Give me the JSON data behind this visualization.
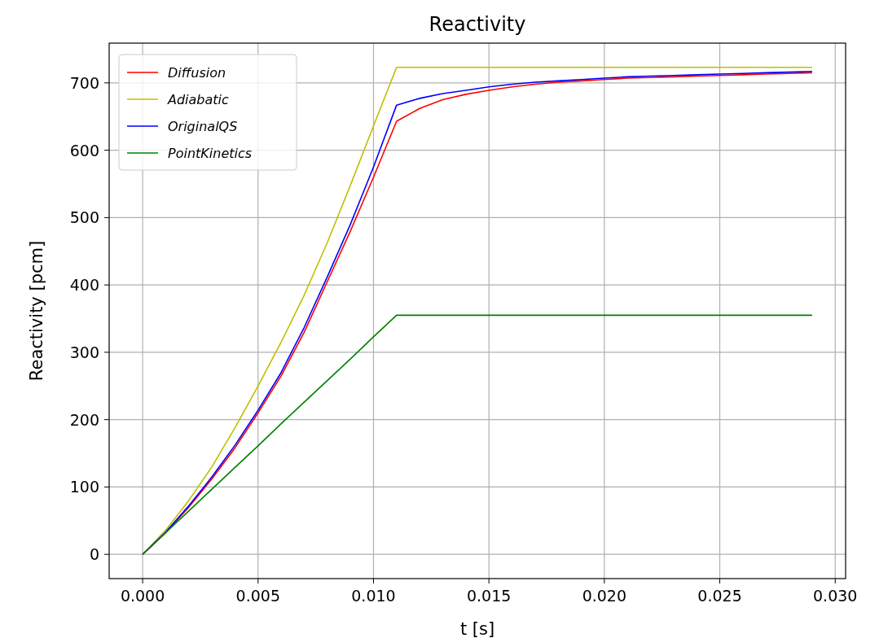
{
  "chart_data": {
    "type": "line",
    "title": "Reactivity",
    "xlabel": "t [s]",
    "ylabel": "Reactivity [pcm]",
    "x": [
      0,
      0.001,
      0.002,
      0.003,
      0.004,
      0.005,
      0.006,
      0.007,
      0.008,
      0.009,
      0.01,
      0.011,
      0.012,
      0.013,
      0.014,
      0.015,
      0.016,
      0.017,
      0.018,
      0.019,
      0.02,
      0.021,
      0.022,
      0.023,
      0.024,
      0.025,
      0.026,
      0.027,
      0.028,
      0.029
    ],
    "series": [
      {
        "name": "Diffusion",
        "color": "#ff0000",
        "values": [
          0,
          32,
          70,
          112,
          158,
          210,
          265,
          330,
          405,
          480,
          560,
          643,
          662,
          675,
          683,
          689,
          694,
          698,
          701,
          703,
          705,
          707,
          708,
          709,
          710,
          711,
          712,
          713,
          714,
          715
        ]
      },
      {
        "name": "Adiabatic",
        "color": "#bfbf00",
        "values": [
          0,
          36,
          80,
          130,
          188,
          250,
          315,
          385,
          463,
          548,
          636,
          723,
          723,
          723,
          723,
          723,
          723,
          723,
          723,
          723,
          723,
          723,
          723,
          723,
          723,
          723,
          723,
          723,
          723,
          723
        ]
      },
      {
        "name": "OriginalQS",
        "color": "#0000ff",
        "values": [
          0,
          33,
          72,
          115,
          162,
          214,
          270,
          337,
          412,
          490,
          575,
          667,
          677,
          684,
          689,
          694,
          698,
          701,
          703,
          705,
          707,
          709,
          710,
          711,
          712,
          713,
          714,
          715,
          716,
          717
        ]
      },
      {
        "name": "PointKinetics",
        "color": "#008000",
        "values": [
          0,
          32.3,
          64.5,
          96.8,
          129,
          161,
          194,
          226,
          258,
          290,
          323,
          355,
          355,
          355,
          355,
          355,
          355,
          355,
          355,
          355,
          355,
          355,
          355,
          355,
          355,
          355,
          355,
          355,
          355,
          355
        ]
      }
    ],
    "xlim": [
      -0.00145,
      0.03045
    ],
    "ylim": [
      -36,
      759
    ],
    "xticks": [
      {
        "value": 0,
        "label": "0.000"
      },
      0.005,
      {
        "value": 0.01,
        "label": "0.010"
      },
      0.015,
      {
        "value": 0.02,
        "label": "0.020"
      },
      0.025,
      {
        "value": 0.03,
        "label": "0.030"
      }
    ],
    "yticks": [
      0,
      100,
      200,
      300,
      400,
      500,
      600,
      700
    ],
    "grid": true,
    "legend": "top left"
  }
}
